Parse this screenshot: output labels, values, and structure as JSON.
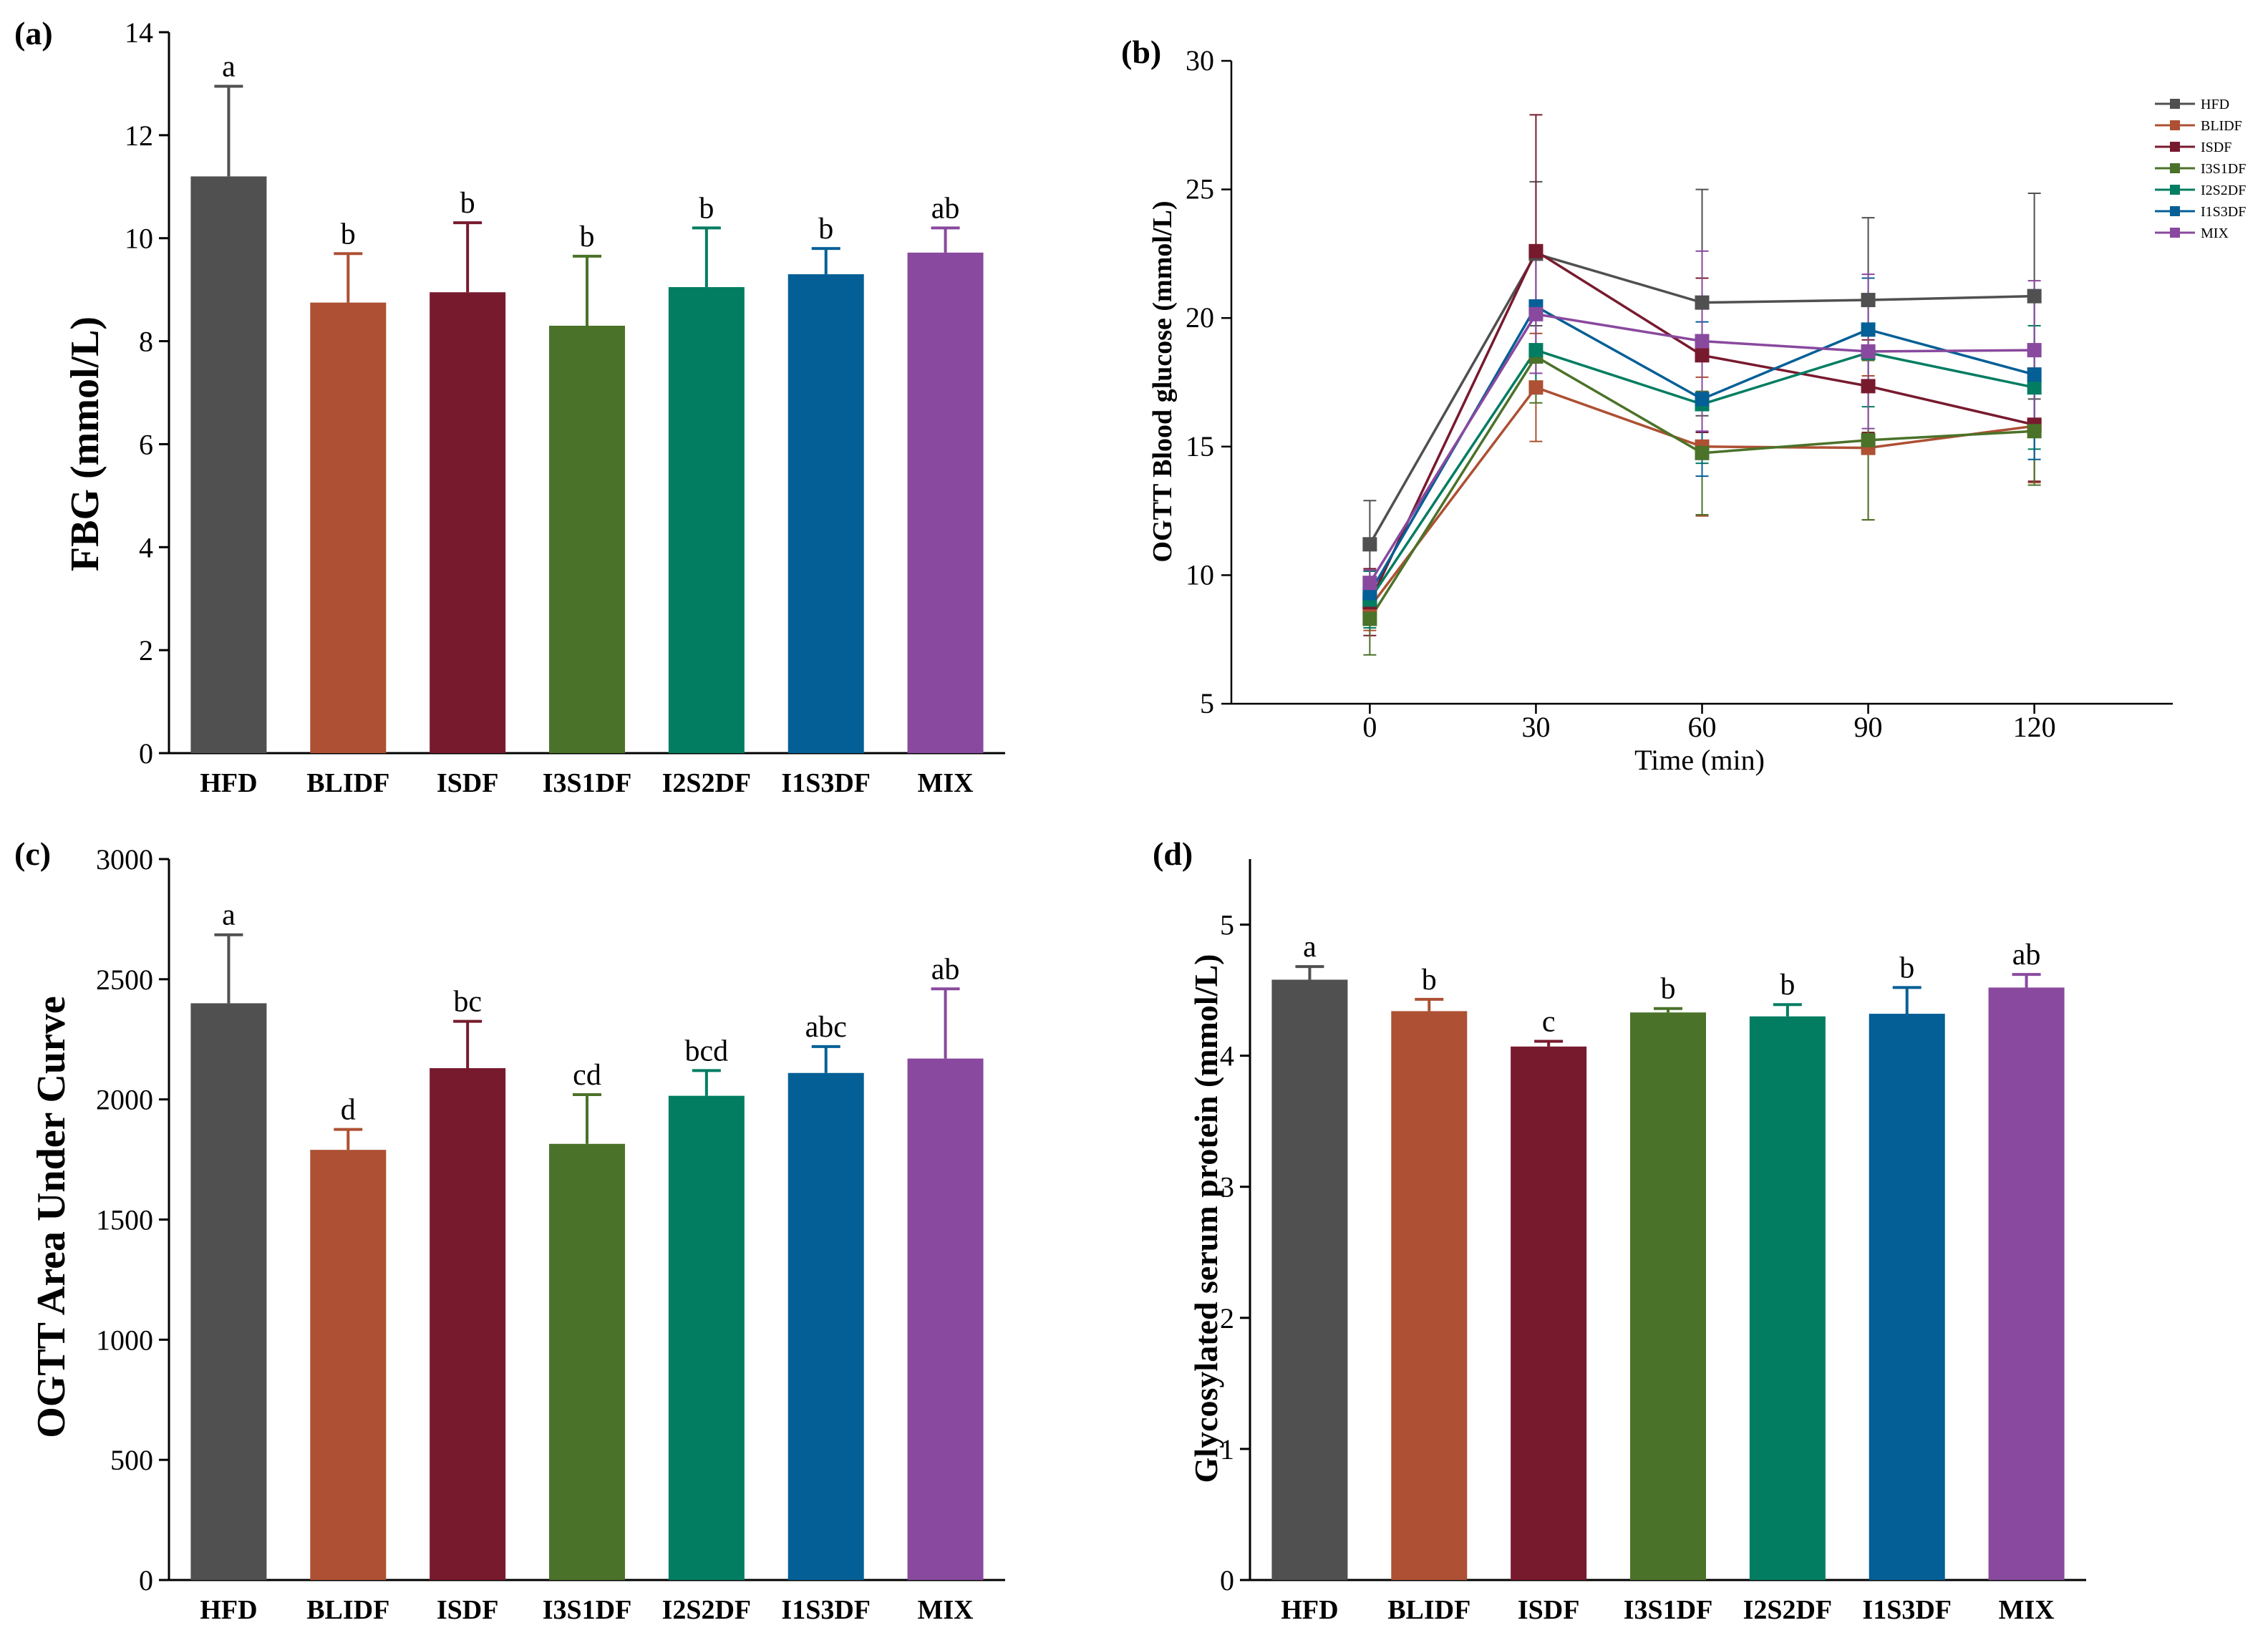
{
  "chart_data": [
    {
      "panel": "(a)",
      "type": "bar",
      "ylabel": "FBG (mmol/L)",
      "ylim": [
        0,
        14
      ],
      "yticks": [
        0,
        2,
        4,
        6,
        8,
        10,
        12,
        14
      ],
      "categories": [
        "HFD",
        "BLIDF",
        "ISDF",
        "I3S1DF",
        "I2S2DF",
        "I1S3DF",
        "MIX"
      ],
      "values": [
        11.2,
        8.75,
        8.95,
        8.3,
        9.05,
        9.3,
        9.72
      ],
      "errors": [
        1.75,
        0.95,
        1.35,
        1.35,
        1.15,
        0.5,
        0.48
      ],
      "letters": [
        "a",
        "b",
        "b",
        "b",
        "b",
        "b",
        "ab"
      ]
    },
    {
      "panel": "(b)",
      "type": "line",
      "xlabel": "Time (min)",
      "ylabel": "OGTT Blood glucose (mmol/L)",
      "x": [
        0,
        30,
        60,
        90,
        120
      ],
      "xlim": [
        -25,
        145
      ],
      "ylim": [
        5,
        30
      ],
      "xticks": [
        0,
        30,
        60,
        90,
        120
      ],
      "yticks": [
        5,
        10,
        15,
        20,
        25,
        30
      ],
      "legend_position": "top-right",
      "series": [
        {
          "name": "HFD",
          "values": [
            11.2,
            22.5,
            20.6,
            20.7,
            20.85
          ],
          "errors": [
            1.7,
            2.8,
            4.4,
            3.2,
            4.0
          ]
        },
        {
          "name": "BLIDF",
          "values": [
            8.75,
            17.3,
            15.0,
            14.95,
            15.8
          ],
          "errors": [
            0.9,
            2.1,
            2.7,
            2.8,
            2.2
          ]
        },
        {
          "name": "ISDF",
          "values": [
            8.95,
            22.6,
            18.55,
            17.35,
            15.85
          ],
          "errors": [
            1.3,
            5.3,
            3.0,
            1.8,
            2.2
          ]
        },
        {
          "name": "I3S1DF",
          "values": [
            8.3,
            18.5,
            14.75,
            15.25,
            15.6
          ],
          "errors": [
            1.4,
            1.8,
            2.4,
            3.1,
            2.1
          ]
        },
        {
          "name": "I2S2DF",
          "values": [
            9.05,
            18.75,
            16.65,
            18.65,
            17.3
          ],
          "errors": [
            1.1,
            1.7,
            2.3,
            2.1,
            2.4
          ]
        },
        {
          "name": "I1S3DF",
          "values": [
            9.3,
            20.45,
            16.85,
            19.55,
            17.8
          ],
          "errors": [
            0.5,
            2.2,
            3.0,
            2.0,
            3.3
          ]
        },
        {
          "name": "MIX",
          "values": [
            9.7,
            20.15,
            19.1,
            18.7,
            18.75
          ],
          "errors": [
            0.5,
            2.3,
            3.5,
            3.0,
            2.7
          ]
        }
      ]
    },
    {
      "panel": "(c)",
      "type": "bar",
      "ylabel": "OGTT Area Under Curve",
      "ylim": [
        0,
        3000
      ],
      "yticks": [
        0,
        500,
        1000,
        1500,
        2000,
        2500,
        3000
      ],
      "categories": [
        "HFD",
        "BLIDF",
        "ISDF",
        "I3S1DF",
        "I2S2DF",
        "I1S3DF",
        "MIX"
      ],
      "values": [
        2400,
        1790,
        2130,
        1815,
        2015,
        2110,
        2170
      ],
      "errors": [
        285,
        85,
        195,
        205,
        105,
        110,
        290
      ],
      "letters": [
        "a",
        "d",
        "bc",
        "cd",
        "bcd",
        "abc",
        "ab"
      ]
    },
    {
      "panel": "(d)",
      "type": "bar",
      "ylabel": "Glycosylated serum protein (mmol/L)",
      "ylim": [
        0,
        5.5
      ],
      "yticks": [
        0,
        1,
        2,
        3,
        4,
        5
      ],
      "categories": [
        "HFD",
        "BLIDF",
        "ISDF",
        "I3S1DF",
        "I2S2DF",
        "I1S3DF",
        "MIX"
      ],
      "values": [
        4.58,
        4.34,
        4.07,
        4.33,
        4.3,
        4.32,
        4.52
      ],
      "errors": [
        0.1,
        0.09,
        0.04,
        0.03,
        0.09,
        0.2,
        0.1
      ],
      "letters": [
        "a",
        "b",
        "c",
        "b",
        "b",
        "b",
        "ab"
      ]
    }
  ],
  "colors": {
    "HFD": "#505050",
    "BLIDF": "#AD5033",
    "ISDF": "#781A2E",
    "I3S1DF": "#4B7229",
    "I2S2DF": "#027D62",
    "I1S3DF": "#045F96",
    "MIX": "#89499E"
  }
}
